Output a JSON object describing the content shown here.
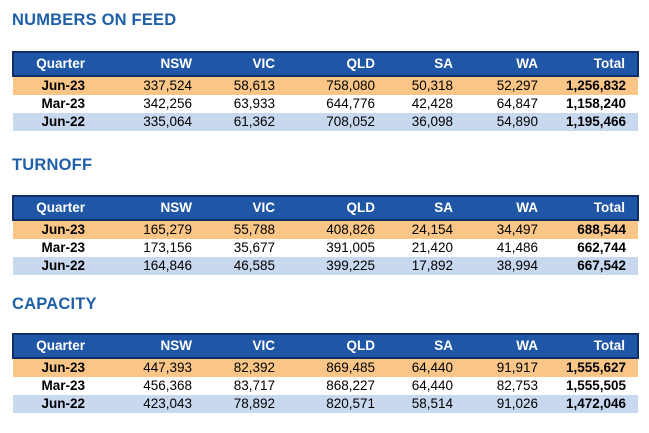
{
  "columns": [
    "Quarter",
    "NSW",
    "VIC",
    "QLD",
    "SA",
    "WA",
    "Total"
  ],
  "sections": [
    {
      "title": "NUMBERS ON FEED",
      "rows": [
        [
          "Jun-23",
          "337,524",
          "58,613",
          "758,080",
          "50,318",
          "52,297",
          "1,256,832"
        ],
        [
          "Mar-23",
          "342,256",
          "63,933",
          "644,776",
          "42,428",
          "64,847",
          "1,158,240"
        ],
        [
          "Jun-22",
          "335,064",
          "61,362",
          "708,052",
          "36,098",
          "54,890",
          "1,195,466"
        ]
      ]
    },
    {
      "title": "TURNOFF",
      "rows": [
        [
          "Jun-23",
          "165,279",
          "55,788",
          "408,826",
          "24,154",
          "34,497",
          "688,544"
        ],
        [
          "Mar-23",
          "173,156",
          "35,677",
          "391,005",
          "21,420",
          "41,486",
          "662,744"
        ],
        [
          "Jun-22",
          "164,846",
          "46,585",
          "399,225",
          "17,892",
          "38,994",
          "667,542"
        ]
      ]
    },
    {
      "title": "CAPACITY",
      "rows": [
        [
          "Jun-23",
          "447,393",
          "82,392",
          "869,485",
          "64,440",
          "91,917",
          "1,555,627"
        ],
        [
          "Mar-23",
          "456,368",
          "83,717",
          "868,227",
          "64,440",
          "82,753",
          "1,555,505"
        ],
        [
          "Jun-22",
          "423,043",
          "78,892",
          "820,571",
          "58,514",
          "91,026",
          "1,472,046"
        ]
      ]
    }
  ]
}
